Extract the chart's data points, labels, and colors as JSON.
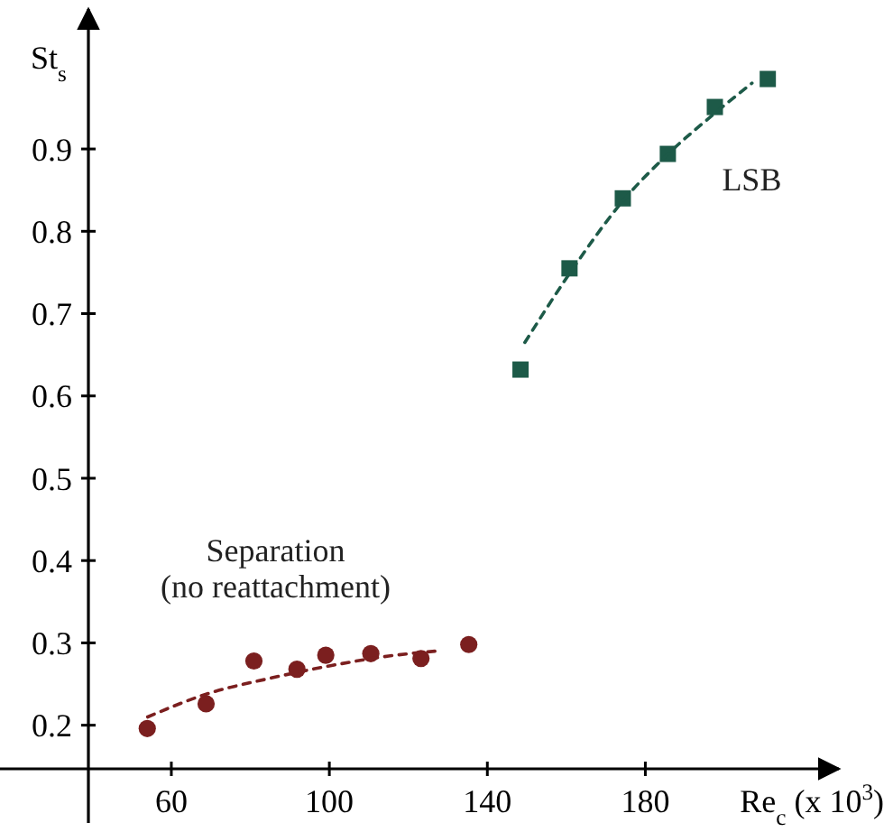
{
  "chart_data": {
    "type": "scatter",
    "xlabel": "Re$_{c}$ (x 10$^{3}$)",
    "ylabel": "St$_{s}$",
    "xlim": [
      39,
      229
    ],
    "ylim": [
      0.147,
      1.07
    ],
    "xticks": [
      60,
      100,
      140,
      180
    ],
    "yticks": [
      0.2,
      0.3,
      0.4,
      0.5,
      0.6,
      0.7,
      0.8,
      0.9
    ],
    "grid": false,
    "series": [
      {
        "name": "Separation (no reattachment)",
        "marker": "circle",
        "color": "#7b1f1f",
        "x": [
          53.9,
          68.8,
          80.9,
          91.8,
          99.1,
          110.5,
          123.2,
          135.3
        ],
        "values": [
          0.196,
          0.226,
          0.278,
          0.268,
          0.285,
          0.287,
          0.281,
          0.298
        ]
      },
      {
        "type": "line",
        "line_style": "dashed",
        "color": "#7b1f1f",
        "x": [
          54,
          69,
          85,
          100,
          115,
          127
        ],
        "values": [
          0.21,
          0.238,
          0.257,
          0.272,
          0.284,
          0.29
        ]
      },
      {
        "name": "LSB",
        "marker": "square",
        "color": "#1d5a48",
        "x": [
          148.4,
          160.8,
          174.3,
          185.7,
          197.6,
          211
        ],
        "values": [
          0.632,
          0.755,
          0.84,
          0.894,
          0.951,
          0.985
        ]
      },
      {
        "type": "line",
        "line_style": "dashed",
        "color": "#1d5a48",
        "x": [
          149.5,
          161,
          174,
          186,
          198,
          207
        ],
        "values": [
          0.665,
          0.75,
          0.835,
          0.895,
          0.945,
          0.98
        ]
      }
    ]
  }
}
